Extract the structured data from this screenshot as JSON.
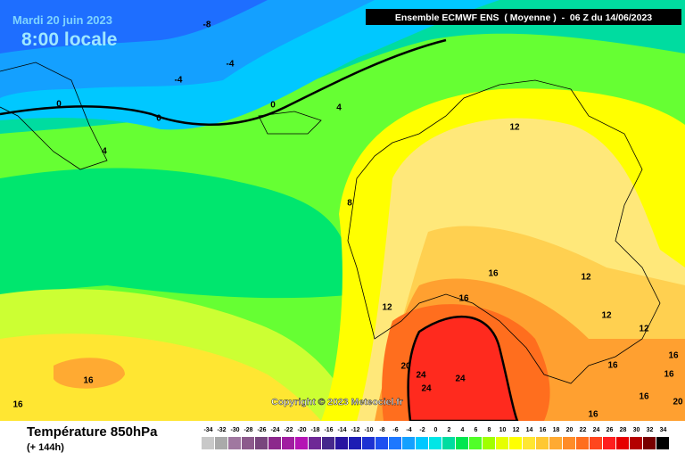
{
  "header": {
    "date": "Mardi 20 juin 2023",
    "time": "8:00 locale",
    "model": "Ensemble ECMWF ENS  ( Moyenne )  -  06 Z du 14/06/2023"
  },
  "map": {
    "contour_labels": [
      "-8",
      "-4",
      "-4",
      "0",
      "0",
      "0",
      "4",
      "4",
      "8",
      "12",
      "12",
      "12",
      "12",
      "12",
      "16",
      "16",
      "16",
      "16",
      "16",
      "16",
      "16",
      "16",
      "20",
      "24",
      "24",
      "24",
      "16",
      "20"
    ],
    "copyright": "Copyright © 2023 Meteociel.fr"
  },
  "legend": {
    "title": "Température 850hPa",
    "lead": "(+ 144h)",
    "values": [
      -34,
      -32,
      -30,
      -28,
      -26,
      -24,
      -22,
      -20,
      -18,
      -16,
      -14,
      -12,
      -10,
      -8,
      -6,
      -4,
      -2,
      0,
      2,
      4,
      6,
      8,
      10,
      12,
      14,
      16,
      18,
      20,
      22,
      24,
      26,
      28,
      30,
      32,
      34
    ],
    "colors": [
      "#c8c8c8",
      "#aaaaaa",
      "#a078a0",
      "#8c5a8c",
      "#78467d",
      "#8c288c",
      "#a01ea0",
      "#b414b4",
      "#6e2896",
      "#46288c",
      "#2814a0",
      "#1e1eb4",
      "#1e32d2",
      "#1e50f0",
      "#1e78ff",
      "#14a0ff",
      "#00c8ff",
      "#00e6e6",
      "#00dca0",
      "#00e650",
      "#50ff28",
      "#a0ff00",
      "#e6ff00",
      "#ffff00",
      "#ffe632",
      "#ffc832",
      "#ffaa32",
      "#ff8c28",
      "#ff6e1e",
      "#ff461e",
      "#ff1e1e",
      "#e60000",
      "#b40000",
      "#780000",
      "#000000"
    ]
  }
}
